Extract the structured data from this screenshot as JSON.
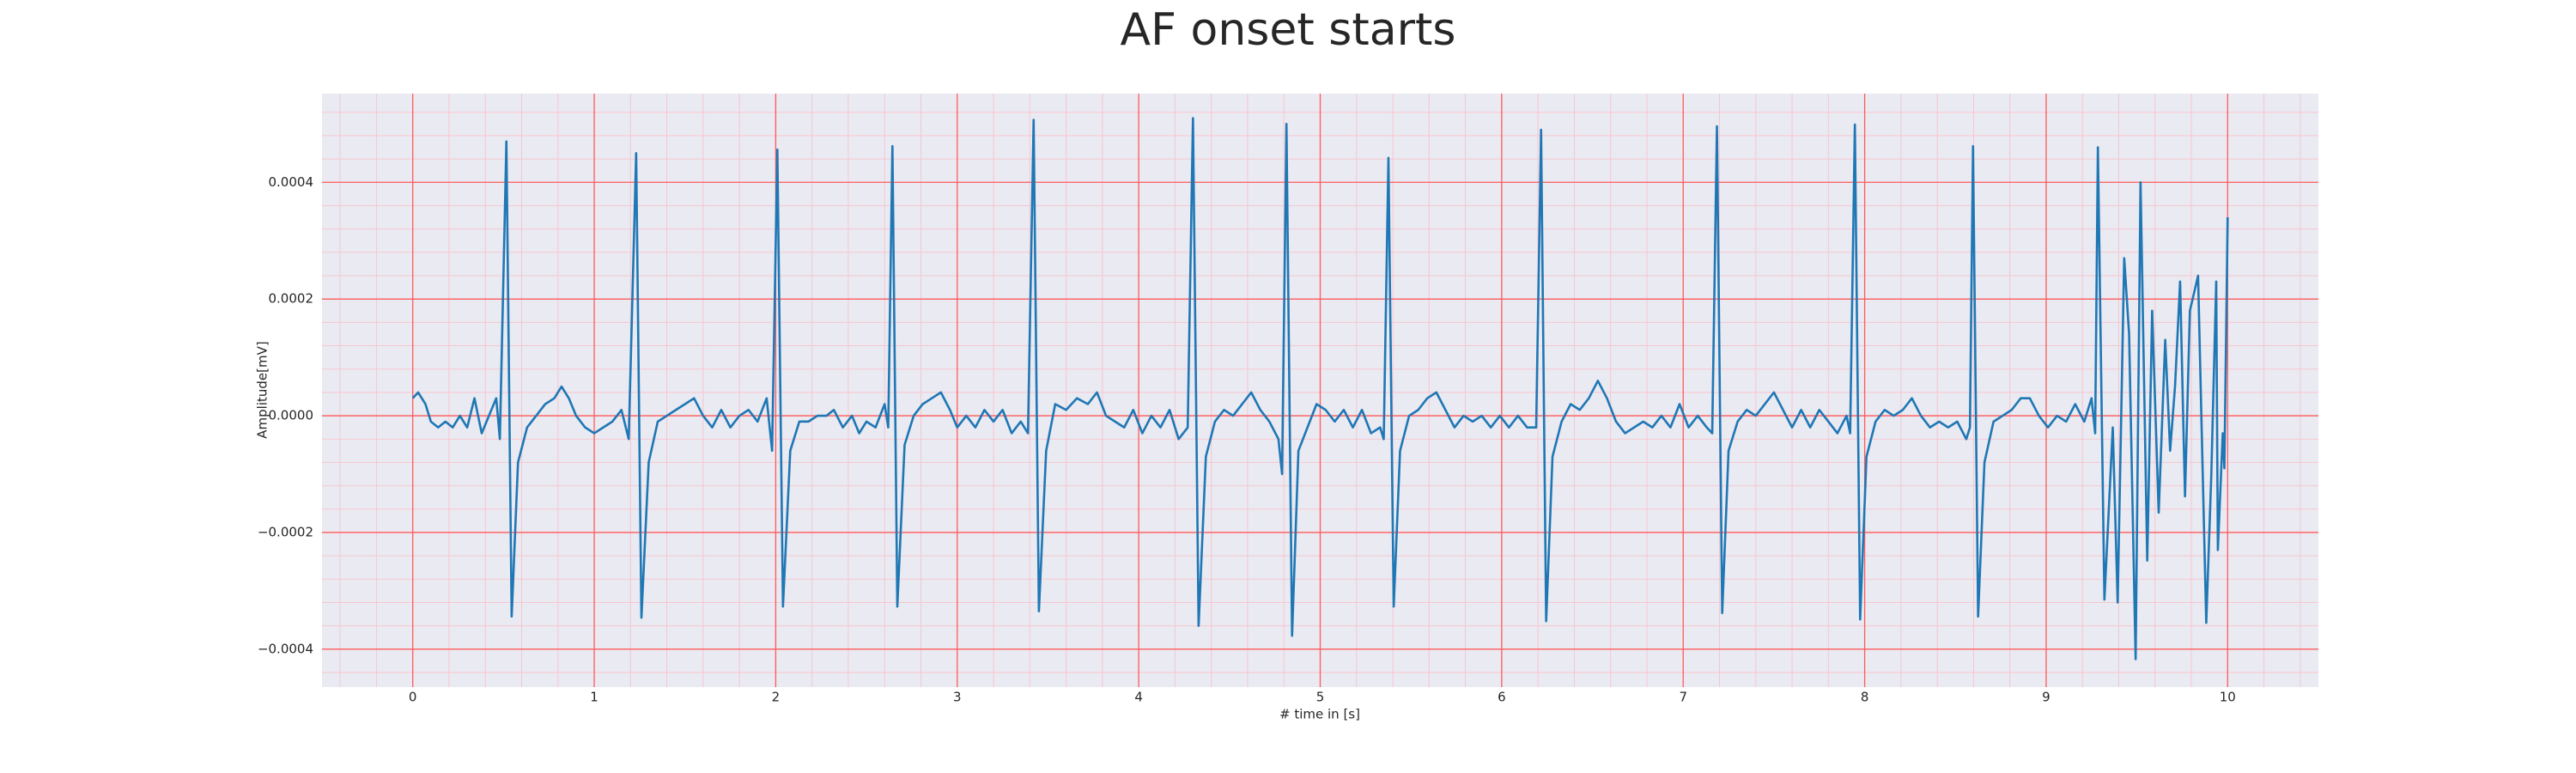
{
  "chart_data": {
    "type": "line",
    "title": "AF onset starts",
    "x_label": "# time in [s]",
    "y_label": "Amplitude[mV]",
    "color": "#1f77b4",
    "background": "#eaeaf2",
    "grid": true,
    "grid_color": "#ff5a5a",
    "minor_grid": true,
    "minor_grid_color": "#f7c6cf",
    "minor_divisions": 5,
    "xlim": [
      -0.5,
      10.5
    ],
    "xticks": [
      0,
      1,
      2,
      3,
      4,
      5,
      6,
      7,
      8,
      9,
      10
    ],
    "ylim": [
      -0.000465,
      0.000552
    ],
    "yticks": [
      {
        "value": -0.0004,
        "label": "−0.0004"
      },
      {
        "value": -0.0002,
        "label": "−0.0002"
      },
      {
        "value": 0,
        "label": "0.0000"
      },
      0.0002,
      0.0004
    ],
    "x": [
      0,
      0.03,
      0.07,
      0.1,
      0.14,
      0.18,
      0.22,
      0.26,
      0.3,
      0.34,
      0.38,
      0.42,
      0.46,
      0.48,
      0.516,
      0.545,
      0.58,
      0.63,
      0.68,
      0.73,
      0.78,
      0.82,
      0.86,
      0.9,
      0.95,
      1,
      1.05,
      1.1,
      1.15,
      1.19,
      1.231,
      1.26,
      1.3,
      1.35,
      1.4,
      1.45,
      1.5,
      1.55,
      1.6,
      1.65,
      1.7,
      1.75,
      1.8,
      1.85,
      1.9,
      1.95,
      1.98,
      2.009,
      2.04,
      2.08,
      2.13,
      2.18,
      2.23,
      2.28,
      2.32,
      2.37,
      2.42,
      2.46,
      2.5,
      2.55,
      2.6,
      2.62,
      2.643,
      2.67,
      2.71,
      2.76,
      2.81,
      2.86,
      2.91,
      2.96,
      3,
      3.05,
      3.1,
      3.15,
      3.2,
      3.25,
      3.3,
      3.35,
      3.39,
      3.421,
      3.45,
      3.49,
      3.54,
      3.6,
      3.66,
      3.72,
      3.77,
      3.82,
      3.87,
      3.92,
      3.97,
      4.02,
      4.07,
      4.12,
      4.17,
      4.22,
      4.27,
      4.299,
      4.33,
      4.37,
      4.42,
      4.47,
      4.52,
      4.57,
      4.62,
      4.67,
      4.72,
      4.77,
      4.79,
      4.814,
      4.845,
      4.88,
      4.93,
      4.98,
      5.03,
      5.08,
      5.13,
      5.18,
      5.23,
      5.28,
      5.33,
      5.35,
      5.376,
      5.405,
      5.44,
      5.49,
      5.54,
      5.59,
      5.64,
      5.69,
      5.74,
      5.79,
      5.84,
      5.89,
      5.94,
      5.99,
      6.04,
      6.09,
      6.14,
      6.19,
      6.217,
      6.245,
      6.28,
      6.33,
      6.38,
      6.43,
      6.48,
      6.53,
      6.58,
      6.63,
      6.68,
      6.73,
      6.78,
      6.83,
      6.88,
      6.93,
      6.98,
      7.03,
      7.08,
      7.13,
      7.16,
      7.186,
      7.215,
      7.25,
      7.3,
      7.35,
      7.4,
      7.45,
      7.5,
      7.55,
      7.6,
      7.65,
      7.7,
      7.75,
      7.8,
      7.85,
      7.9,
      7.92,
      7.946,
      7.975,
      8.01,
      8.06,
      8.11,
      8.16,
      8.21,
      8.26,
      8.31,
      8.36,
      8.41,
      8.46,
      8.51,
      8.56,
      8.58,
      8.597,
      8.625,
      8.66,
      8.71,
      8.76,
      8.81,
      8.86,
      8.91,
      8.96,
      9.01,
      9.06,
      9.11,
      9.16,
      9.21,
      9.25,
      9.27,
      9.285,
      9.321,
      9.367,
      9.394,
      9.43,
      9.457,
      9.493,
      9.52,
      9.557,
      9.584,
      9.62,
      9.656,
      9.683,
      9.71,
      9.738,
      9.765,
      9.792,
      9.837,
      9.882,
      9.91,
      9.937,
      9.946,
      9.973,
      9.982,
      10
    ],
    "values": [
      3e-05,
      4e-05,
      2e-05,
      -1e-05,
      -2e-05,
      -1e-05,
      -2e-05,
      0,
      -2e-05,
      3e-05,
      -3e-05,
      0,
      3e-05,
      -4e-05,
      0.00047,
      -0.000344,
      -8e-05,
      -2e-05,
      0,
      2e-05,
      3e-05,
      5e-05,
      3e-05,
      0,
      -2e-05,
      -3e-05,
      -2e-05,
      -1e-05,
      1e-05,
      -4e-05,
      0.00045,
      -0.000346,
      -8e-05,
      -1e-05,
      0,
      1e-05,
      2e-05,
      3e-05,
      0,
      -2e-05,
      1e-05,
      -2e-05,
      0,
      1e-05,
      -1e-05,
      3e-05,
      -6e-05,
      0.000456,
      -0.000327,
      -6e-05,
      -1e-05,
      -1e-05,
      0,
      0,
      1e-05,
      -2e-05,
      0,
      -3e-05,
      -1e-05,
      -2e-05,
      2e-05,
      -2e-05,
      0.000462,
      -0.000327,
      -5e-05,
      0,
      2e-05,
      3e-05,
      4e-05,
      1e-05,
      -2e-05,
      0,
      -2e-05,
      1e-05,
      -1e-05,
      1e-05,
      -3e-05,
      -1e-05,
      -3e-05,
      0.000507,
      -0.000335,
      -6e-05,
      2e-05,
      1e-05,
      3e-05,
      2e-05,
      4e-05,
      0,
      -1e-05,
      -2e-05,
      1e-05,
      -3e-05,
      0,
      -2e-05,
      1e-05,
      -4e-05,
      -2e-05,
      0.00051,
      -0.00036,
      -7e-05,
      -1e-05,
      1e-05,
      0,
      2e-05,
      4e-05,
      1e-05,
      -1e-05,
      -4e-05,
      -0.0001,
      0.0005,
      -0.000377,
      -6e-05,
      -2e-05,
      2e-05,
      1e-05,
      -1e-05,
      1e-05,
      -2e-05,
      1e-05,
      -3e-05,
      -2e-05,
      -4e-05,
      0.000442,
      -0.000327,
      -6e-05,
      0,
      1e-05,
      3e-05,
      4e-05,
      1e-05,
      -2e-05,
      0,
      -1e-05,
      0,
      -2e-05,
      0,
      -2e-05,
      0,
      -2e-05,
      -2e-05,
      0.00049,
      -0.000352,
      -7e-05,
      -1e-05,
      2e-05,
      1e-05,
      3e-05,
      6e-05,
      3e-05,
      -1e-05,
      -3e-05,
      -2e-05,
      -1e-05,
      -2e-05,
      0,
      -2e-05,
      2e-05,
      -2e-05,
      0,
      -2e-05,
      -3e-05,
      0.000496,
      -0.000338,
      -6e-05,
      -1e-05,
      1e-05,
      0,
      2e-05,
      4e-05,
      1e-05,
      -2e-05,
      1e-05,
      -2e-05,
      1e-05,
      -1e-05,
      -3e-05,
      0,
      -3e-05,
      0.000499,
      -0.000349,
      -7e-05,
      -1e-05,
      1e-05,
      0,
      1e-05,
      3e-05,
      0,
      -2e-05,
      -1e-05,
      -2e-05,
      -1e-05,
      -4e-05,
      -2e-05,
      0.000462,
      -0.000344,
      -8e-05,
      -1e-05,
      0,
      1e-05,
      3e-05,
      3e-05,
      0,
      -2e-05,
      0,
      -1e-05,
      2e-05,
      -1e-05,
      3e-05,
      -3e-05,
      0.00046,
      -0.000315,
      -2e-05,
      -0.00032,
      0.00027,
      0.00014,
      -0.000417,
      0.0004,
      -0.000248,
      0.00018,
      -0.000166,
      0.00013,
      -6e-05,
      5e-05,
      0.00023,
      -0.000138,
      0.00018,
      0.00024,
      -0.000355,
      -0.0001,
      0.00023,
      -0.00023,
      -3e-05,
      -9e-05,
      0.00034
    ]
  }
}
